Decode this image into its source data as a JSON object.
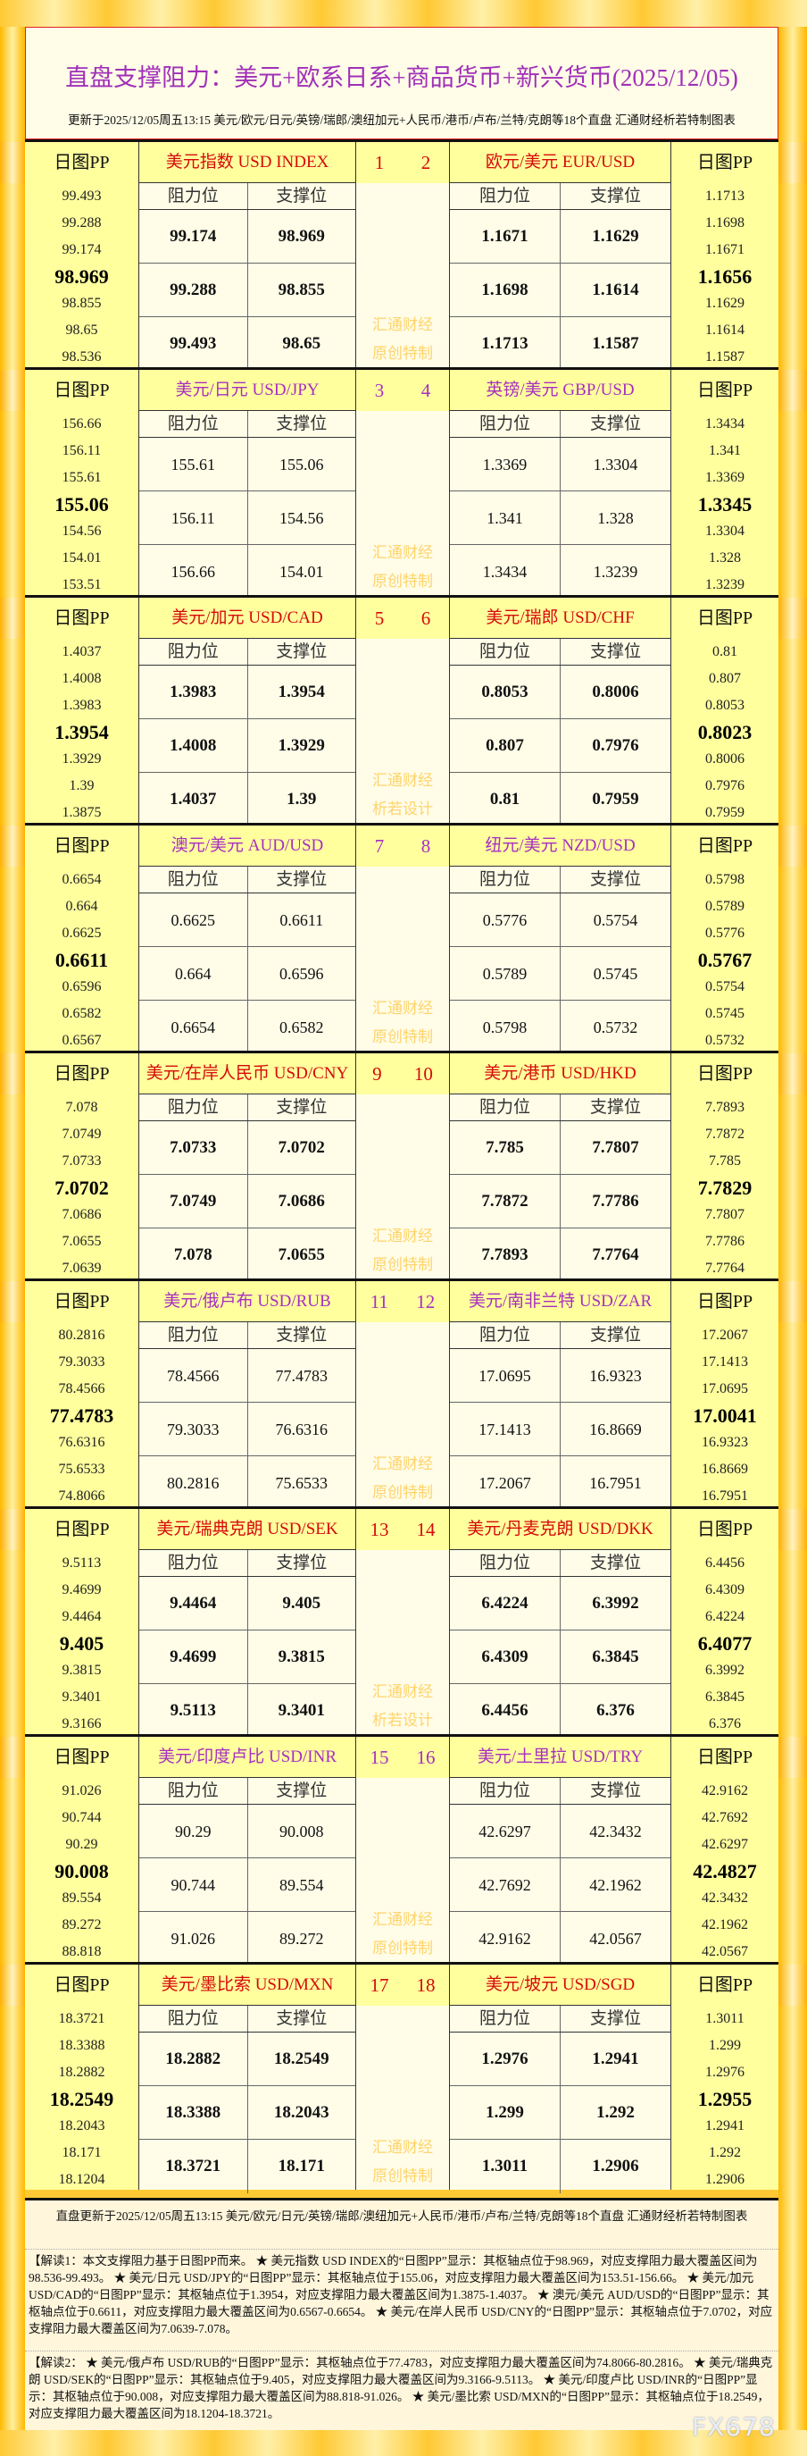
{
  "header": {
    "title": "直盘支撑阻力：美元+欧系日系+商品货币+新兴货币(2025/12/05)",
    "subtitle": "更新于2025/12/05周五13:15 美元/欧元/日元/英镑/瑞郎/澳纽加元+人民币/港币/卢布/兰特/克朗等18个直盘 汇通财经析若特制图表"
  },
  "labels": {
    "pp": "日图PP",
    "res": "阻力位",
    "sup": "支撑位",
    "wm1": "汇通财经"
  },
  "colors": {
    "red": "#d60a0a",
    "purple": "#a630c0",
    "yellow": "#ffff9e",
    "cream": "#fffde8"
  },
  "blocks": [
    {
      "color": "red",
      "n1": "1",
      "n2": "2",
      "wm2": "原创特制",
      "left": {
        "name": "美元指数 USD INDEX",
        "pp": [
          "99.493",
          "99.288",
          "99.174",
          "98.969",
          "98.855",
          "98.65",
          "98.536"
        ],
        "rows": [
          [
            "99.174",
            "98.969"
          ],
          [
            "99.288",
            "98.855"
          ],
          [
            "99.493",
            "98.65"
          ]
        ]
      },
      "right": {
        "name": "欧元/美元 EUR/USD",
        "pp": [
          "1.1713",
          "1.1698",
          "1.1671",
          "1.1656",
          "1.1629",
          "1.1614",
          "1.1587"
        ],
        "rows": [
          [
            "1.1671",
            "1.1629"
          ],
          [
            "1.1698",
            "1.1614"
          ],
          [
            "1.1713",
            "1.1587"
          ]
        ]
      }
    },
    {
      "color": "purple",
      "n1": "3",
      "n2": "4",
      "wm2": "原创特制",
      "left": {
        "name": "美元/日元 USD/JPY",
        "pp": [
          "156.66",
          "156.11",
          "155.61",
          "155.06",
          "154.56",
          "154.01",
          "153.51"
        ],
        "rows": [
          [
            "155.61",
            "155.06"
          ],
          [
            "156.11",
            "154.56"
          ],
          [
            "156.66",
            "154.01"
          ]
        ]
      },
      "right": {
        "name": "英镑/美元 GBP/USD",
        "pp": [
          "1.3434",
          "1.341",
          "1.3369",
          "1.3345",
          "1.3304",
          "1.328",
          "1.3239"
        ],
        "rows": [
          [
            "1.3369",
            "1.3304"
          ],
          [
            "1.341",
            "1.328"
          ],
          [
            "1.3434",
            "1.3239"
          ]
        ]
      }
    },
    {
      "color": "red",
      "n1": "5",
      "n2": "6",
      "wm2": "析若设计",
      "left": {
        "name": "美元/加元 USD/CAD",
        "pp": [
          "1.4037",
          "1.4008",
          "1.3983",
          "1.3954",
          "1.3929",
          "1.39",
          "1.3875"
        ],
        "rows": [
          [
            "1.3983",
            "1.3954"
          ],
          [
            "1.4008",
            "1.3929"
          ],
          [
            "1.4037",
            "1.39"
          ]
        ]
      },
      "right": {
        "name": "美元/瑞郎 USD/CHF",
        "pp": [
          "0.81",
          "0.807",
          "0.8053",
          "0.8023",
          "0.8006",
          "0.7976",
          "0.7959"
        ],
        "rows": [
          [
            "0.8053",
            "0.8006"
          ],
          [
            "0.807",
            "0.7976"
          ],
          [
            "0.81",
            "0.7959"
          ]
        ]
      }
    },
    {
      "color": "purple",
      "n1": "7",
      "n2": "8",
      "wm2": "原创特制",
      "left": {
        "name": "澳元/美元 AUD/USD",
        "pp": [
          "0.6654",
          "0.664",
          "0.6625",
          "0.6611",
          "0.6596",
          "0.6582",
          "0.6567"
        ],
        "rows": [
          [
            "0.6625",
            "0.6611"
          ],
          [
            "0.664",
            "0.6596"
          ],
          [
            "0.6654",
            "0.6582"
          ]
        ]
      },
      "right": {
        "name": "纽元/美元 NZD/USD",
        "pp": [
          "0.5798",
          "0.5789",
          "0.5776",
          "0.5767",
          "0.5754",
          "0.5745",
          "0.5732"
        ],
        "rows": [
          [
            "0.5776",
            "0.5754"
          ],
          [
            "0.5789",
            "0.5745"
          ],
          [
            "0.5798",
            "0.5732"
          ]
        ]
      }
    },
    {
      "color": "red",
      "n1": "9",
      "n2": "10",
      "wm2": "原创特制",
      "left": {
        "name": "美元/在岸人民币 USD/CNY",
        "pp": [
          "7.078",
          "7.0749",
          "7.0733",
          "7.0702",
          "7.0686",
          "7.0655",
          "7.0639"
        ],
        "rows": [
          [
            "7.0733",
            "7.0702"
          ],
          [
            "7.0749",
            "7.0686"
          ],
          [
            "7.078",
            "7.0655"
          ]
        ]
      },
      "right": {
        "name": "美元/港币 USD/HKD",
        "pp": [
          "7.7893",
          "7.7872",
          "7.785",
          "7.7829",
          "7.7807",
          "7.7786",
          "7.7764"
        ],
        "rows": [
          [
            "7.785",
            "7.7807"
          ],
          [
            "7.7872",
            "7.7786"
          ],
          [
            "7.7893",
            "7.7764"
          ]
        ]
      }
    },
    {
      "color": "purple",
      "n1": "11",
      "n2": "12",
      "wm2": "原创特制",
      "left": {
        "name": "美元/俄卢布 USD/RUB",
        "pp": [
          "80.2816",
          "79.3033",
          "78.4566",
          "77.4783",
          "76.6316",
          "75.6533",
          "74.8066"
        ],
        "rows": [
          [
            "78.4566",
            "77.4783"
          ],
          [
            "79.3033",
            "76.6316"
          ],
          [
            "80.2816",
            "75.6533"
          ]
        ]
      },
      "right": {
        "name": "美元/南非兰特 USD/ZAR",
        "pp": [
          "17.2067",
          "17.1413",
          "17.0695",
          "17.0041",
          "16.9323",
          "16.8669",
          "16.7951"
        ],
        "rows": [
          [
            "17.0695",
            "16.9323"
          ],
          [
            "17.1413",
            "16.8669"
          ],
          [
            "17.2067",
            "16.7951"
          ]
        ]
      }
    },
    {
      "color": "red",
      "n1": "13",
      "n2": "14",
      "wm2": "析若设计",
      "left": {
        "name": "美元/瑞典克朗 USD/SEK",
        "pp": [
          "9.5113",
          "9.4699",
          "9.4464",
          "9.405",
          "9.3815",
          "9.3401",
          "9.3166"
        ],
        "rows": [
          [
            "9.4464",
            "9.405"
          ],
          [
            "9.4699",
            "9.3815"
          ],
          [
            "9.5113",
            "9.3401"
          ]
        ]
      },
      "right": {
        "name": "美元/丹麦克朗 USD/DKK",
        "pp": [
          "6.4456",
          "6.4309",
          "6.4224",
          "6.4077",
          "6.3992",
          "6.3845",
          "6.376"
        ],
        "rows": [
          [
            "6.4224",
            "6.3992"
          ],
          [
            "6.4309",
            "6.3845"
          ],
          [
            "6.4456",
            "6.376"
          ]
        ]
      }
    },
    {
      "color": "purple",
      "n1": "15",
      "n2": "16",
      "wm2": "原创特制",
      "left": {
        "name": "美元/印度卢比 USD/INR",
        "pp": [
          "91.026",
          "90.744",
          "90.29",
          "90.008",
          "89.554",
          "89.272",
          "88.818"
        ],
        "rows": [
          [
            "90.29",
            "90.008"
          ],
          [
            "90.744",
            "89.554"
          ],
          [
            "91.026",
            "89.272"
          ]
        ]
      },
      "right": {
        "name": "美元/土里拉 USD/TRY",
        "pp": [
          "42.9162",
          "42.7692",
          "42.6297",
          "42.4827",
          "42.3432",
          "42.1962",
          "42.0567"
        ],
        "rows": [
          [
            "42.6297",
            "42.3432"
          ],
          [
            "42.7692",
            "42.1962"
          ],
          [
            "42.9162",
            "42.0567"
          ]
        ]
      }
    },
    {
      "color": "red",
      "n1": "17",
      "n2": "18",
      "wm2": "原创特制",
      "left": {
        "name": "美元/墨比索 USD/MXN",
        "pp": [
          "18.3721",
          "18.3388",
          "18.2882",
          "18.2549",
          "18.2043",
          "18.171",
          "18.1204"
        ],
        "rows": [
          [
            "18.2882",
            "18.2549"
          ],
          [
            "18.3388",
            "18.2043"
          ],
          [
            "18.3721",
            "18.171"
          ]
        ]
      },
      "right": {
        "name": "美元/坡元 USD/SGD",
        "pp": [
          "1.3011",
          "1.299",
          "1.2976",
          "1.2955",
          "1.2941",
          "1.292",
          "1.2906"
        ],
        "rows": [
          [
            "1.2976",
            "1.2941"
          ],
          [
            "1.299",
            "1.292"
          ],
          [
            "1.3011",
            "1.2906"
          ]
        ]
      }
    }
  ],
  "footer": {
    "update": "直盘更新于2025/12/05周五13:15 美元/欧元/日元/英镑/瑞郎/澳纽加元+人民币/港币/卢布/兰特/克朗等18个直盘 汇通财经析若特制图表",
    "note1": "【解读1：本文支撑阻力基于日图PP而来。 ★ 美元指数 USD INDEX的“日图PP”显示：其枢轴点位于98.969，对应支撑阻力最大覆盖区间为98.536-99.493。 ★ 美元/日元 USD/JPY的“日图PP”显示：其枢轴点位于155.06，对应支撑阻力最大覆盖区间为153.51-156.66。 ★ 美元/加元 USD/CAD的“日图PP”显示：其枢轴点位于1.3954，对应支撑阻力最大覆盖区间为1.3875-1.4037。 ★ 澳元/美元 AUD/USD的“日图PP”显示：其枢轴点位于0.6611，对应支撑阻力最大覆盖区间为0.6567-0.6654。 ★ 美元/在岸人民币 USD/CNY的“日图PP”显示：其枢轴点位于7.0702，对应支撑阻力最大覆盖区间为7.0639-7.078。",
    "note2": "【解读2： ★ 美元/俄卢布 USD/RUB的“日图PP”显示：其枢轴点位于77.4783，对应支撑阻力最大覆盖区间为74.8066-80.2816。 ★ 美元/瑞典克朗 USD/SEK的“日图PP”显示：其枢轴点位于9.405，对应支撑阻力最大覆盖区间为9.3166-9.5113。 ★ 美元/印度卢比 USD/INR的“日图PP”显示：其枢轴点位于90.008，对应支撑阻力最大覆盖区间为88.818-91.026。 ★ 美元/墨比索 USD/MXN的“日图PP”显示：其枢轴点位于18.2549，对应支撑阻力最大覆盖区间为18.1204-18.3721。",
    "logo": "FX678"
  }
}
